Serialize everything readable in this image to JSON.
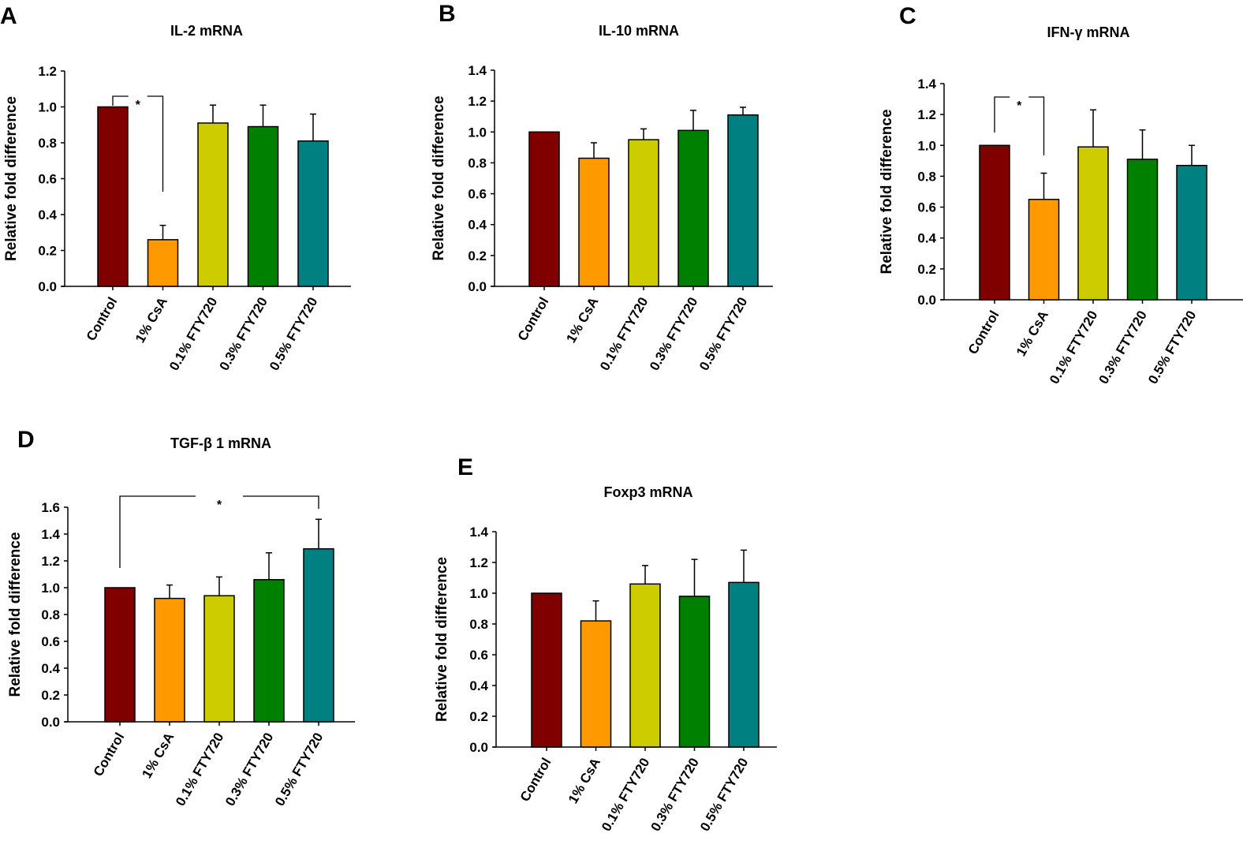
{
  "figure": {
    "categories": [
      "Control",
      "1% CsA",
      "0.1% FTY720",
      "0.3% FTY720",
      "0.5% FTY720"
    ],
    "bar_colors": [
      "#800000",
      "#FF9900",
      "#CCCC00",
      "#008000",
      "#008080"
    ]
  },
  "chart_data": [
    {
      "panel": "A",
      "type": "bar",
      "title": "IL-2 mRNA",
      "xlabel": "",
      "ylabel": "Relative fold difference",
      "categories": [
        "Control",
        "1% CsA",
        "0.1% FTY720",
        "0.3% FTY720",
        "0.5% FTY720"
      ],
      "values": [
        1.0,
        0.26,
        0.91,
        0.89,
        0.81
      ],
      "error_upper": [
        0.0,
        0.08,
        0.1,
        0.12,
        0.15
      ],
      "ylim": [
        0,
        1.2
      ],
      "yticks": [
        "0.0",
        "0.2",
        "0.4",
        "0.6",
        "0.8",
        "1.0",
        "1.2"
      ],
      "grid": false,
      "significance": [
        {
          "from": "Control",
          "to": "1% CsA",
          "label": "*"
        }
      ]
    },
    {
      "panel": "B",
      "type": "bar",
      "title": "IL-10 mRNA",
      "xlabel": "",
      "ylabel": "Relative fold difference",
      "categories": [
        "Control",
        "1% CsA",
        "0.1% FTY720",
        "0.3% FTY720",
        "0.5% FTY720"
      ],
      "values": [
        1.0,
        0.83,
        0.95,
        1.01,
        1.11
      ],
      "error_upper": [
        0.0,
        0.1,
        0.07,
        0.13,
        0.05
      ],
      "ylim": [
        0,
        1.4
      ],
      "yticks": [
        "0.0",
        "0.2",
        "0.4",
        "0.6",
        "0.8",
        "1.0",
        "1.2",
        "1.4"
      ],
      "grid": false,
      "significance": []
    },
    {
      "panel": "C",
      "type": "bar",
      "title": "IFN-γ  mRNA",
      "xlabel": "",
      "ylabel": "Relative fold difference",
      "categories": [
        "Control",
        "1% CsA",
        "0.1% FTY720",
        "0.3% FTY720",
        "0.5% FTY720"
      ],
      "values": [
        1.0,
        0.65,
        0.99,
        0.91,
        0.87
      ],
      "error_upper": [
        0.0,
        0.17,
        0.24,
        0.19,
        0.13
      ],
      "ylim": [
        0,
        1.4
      ],
      "yticks": [
        "0.0",
        "0.2",
        "0.4",
        "0.6",
        "0.8",
        "1.0",
        "1.2",
        "1.4"
      ],
      "grid": false,
      "significance": [
        {
          "from": "Control",
          "to": "1% CsA",
          "label": "*"
        }
      ]
    },
    {
      "panel": "D",
      "type": "bar",
      "title": "TGF-β 1 mRNA",
      "xlabel": "",
      "ylabel": "Relative fold difference",
      "categories": [
        "Control",
        "1% CsA",
        "0.1% FTY720",
        "0.3% FTY720",
        "0.5% FTY720"
      ],
      "values": [
        1.0,
        0.92,
        0.94,
        1.06,
        1.29
      ],
      "error_upper": [
        0.0,
        0.1,
        0.14,
        0.2,
        0.22
      ],
      "ylim": [
        0,
        1.6
      ],
      "yticks": [
        "0.0",
        "0.2",
        "0.4",
        "0.6",
        "0.8",
        "1.0",
        "1.2",
        "1.4",
        "1.6"
      ],
      "grid": false,
      "significance": [
        {
          "from": "Control",
          "to": "0.5% FTY720",
          "label": "*"
        }
      ]
    },
    {
      "panel": "E",
      "type": "bar",
      "title": "Foxp3 mRNA",
      "xlabel": "",
      "ylabel": "Relative fold difference",
      "categories": [
        "Control",
        "1% CsA",
        "0.1% FTY720",
        "0.3% FTY720",
        "0.5% FTY720"
      ],
      "values": [
        1.0,
        0.82,
        1.06,
        0.98,
        1.07
      ],
      "error_upper": [
        0.0,
        0.13,
        0.12,
        0.24,
        0.21
      ],
      "ylim": [
        0,
        1.4
      ],
      "yticks": [
        "0.0",
        "0.2",
        "0.4",
        "0.6",
        "0.8",
        "1.0",
        "1.2",
        "1.4"
      ],
      "grid": false,
      "significance": []
    }
  ]
}
